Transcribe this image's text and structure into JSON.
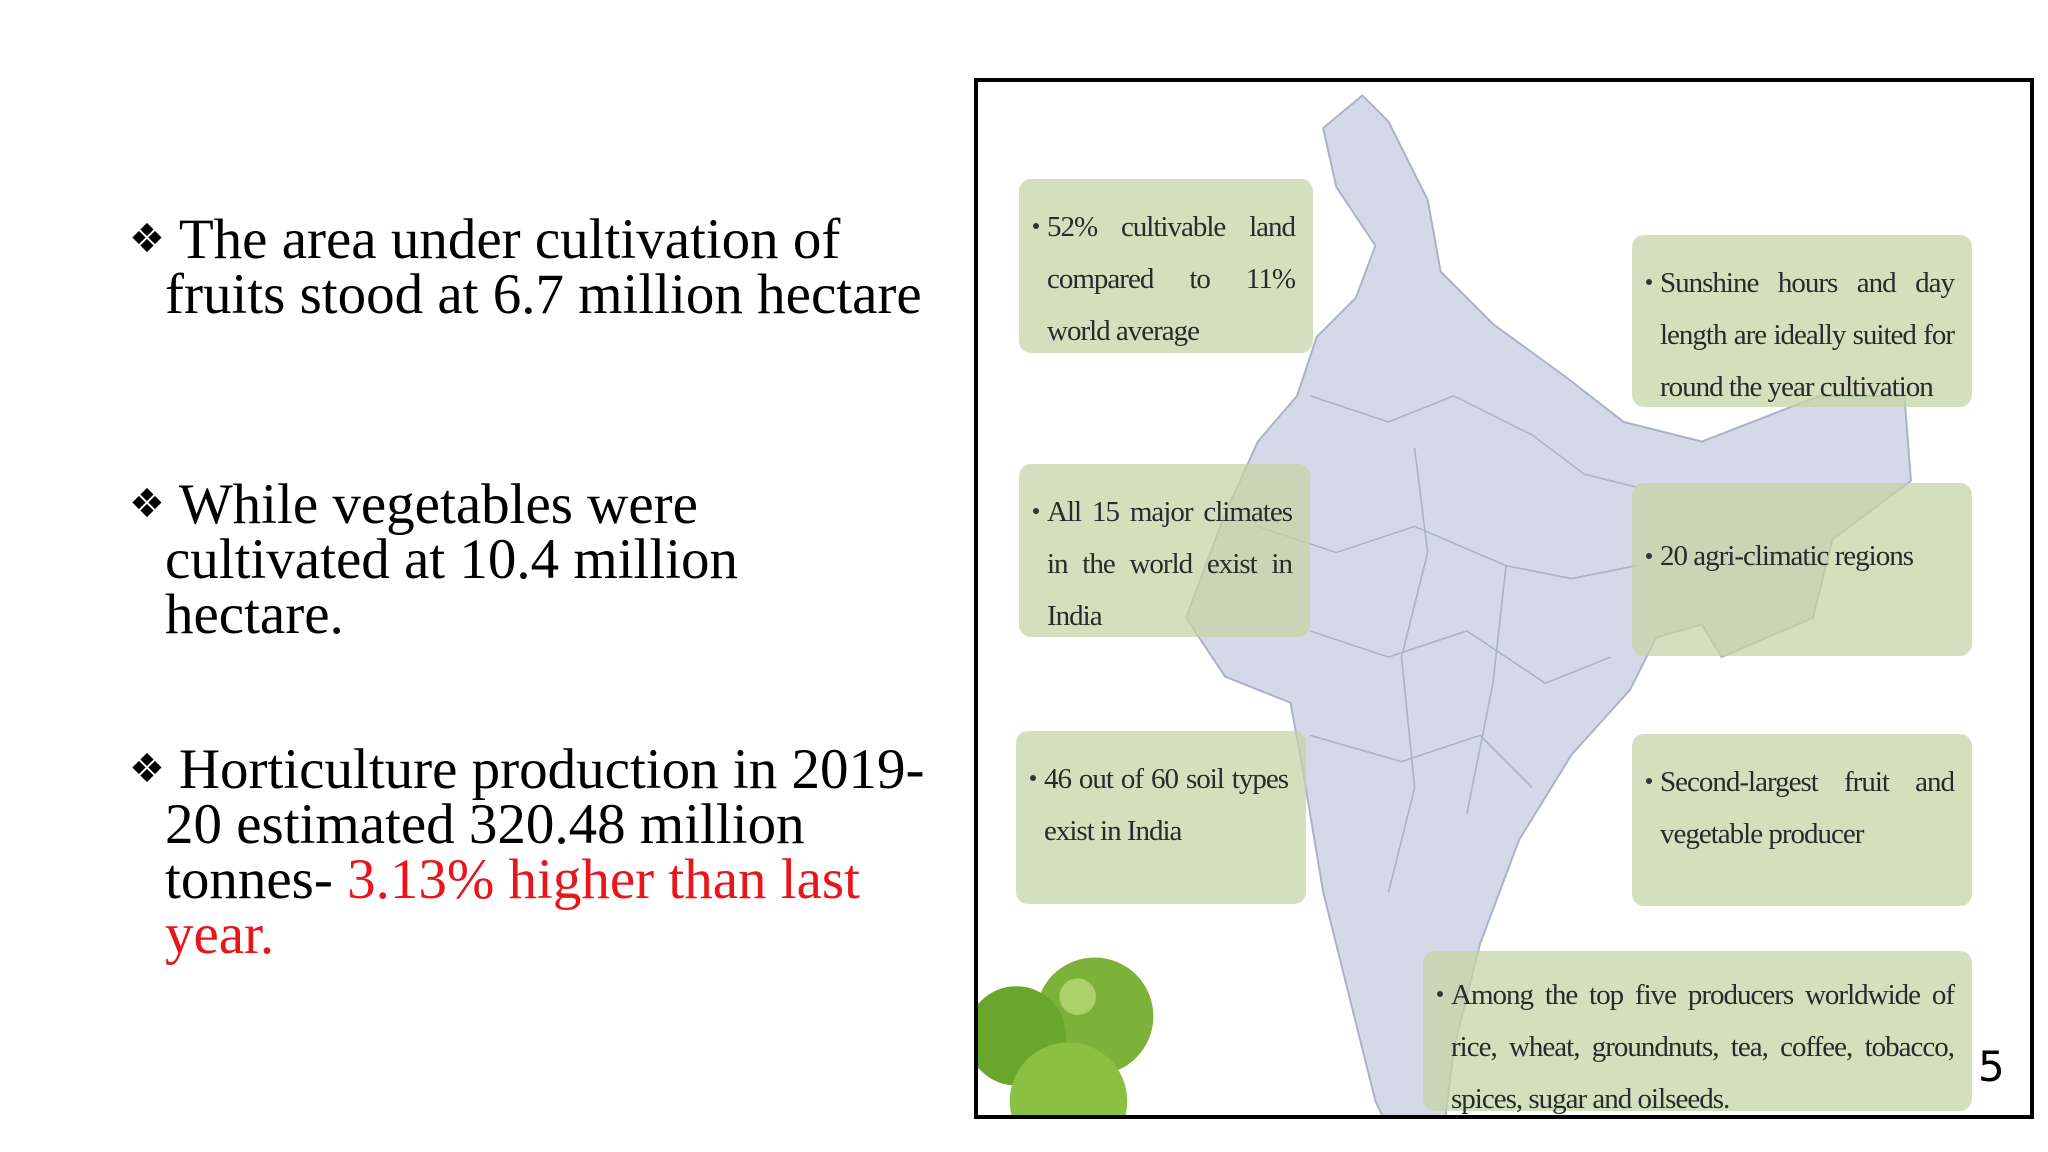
{
  "bullet_symbol": "❖",
  "bullets": [
    {
      "text": "The area under cultivation of fruits stood at 6.7 million hectare"
    },
    {
      "text": "While vegetables were cultivated at 10.4 million hectare."
    },
    {
      "text": "Horticulture production in 2019-20 estimated 320.48 million tonnes-",
      "highlight": "3.13% higher than last year."
    }
  ],
  "map_facts": [
    "52% cultivable land compared to 11% world average",
    "Sunshine hours and day length are ideally suited for round the year cultivation",
    "All 15 major climates in the world exist in India",
    "20 agri-climatic regions",
    "46 out of 60 soil types exist in India",
    "Second-largest fruit and vegetable producer",
    "Among the top five producers worldwide of rice, wheat, groundnuts, tea, coffee, tobacco, spices, sugar and oilseeds."
  ],
  "slide_number": "5"
}
